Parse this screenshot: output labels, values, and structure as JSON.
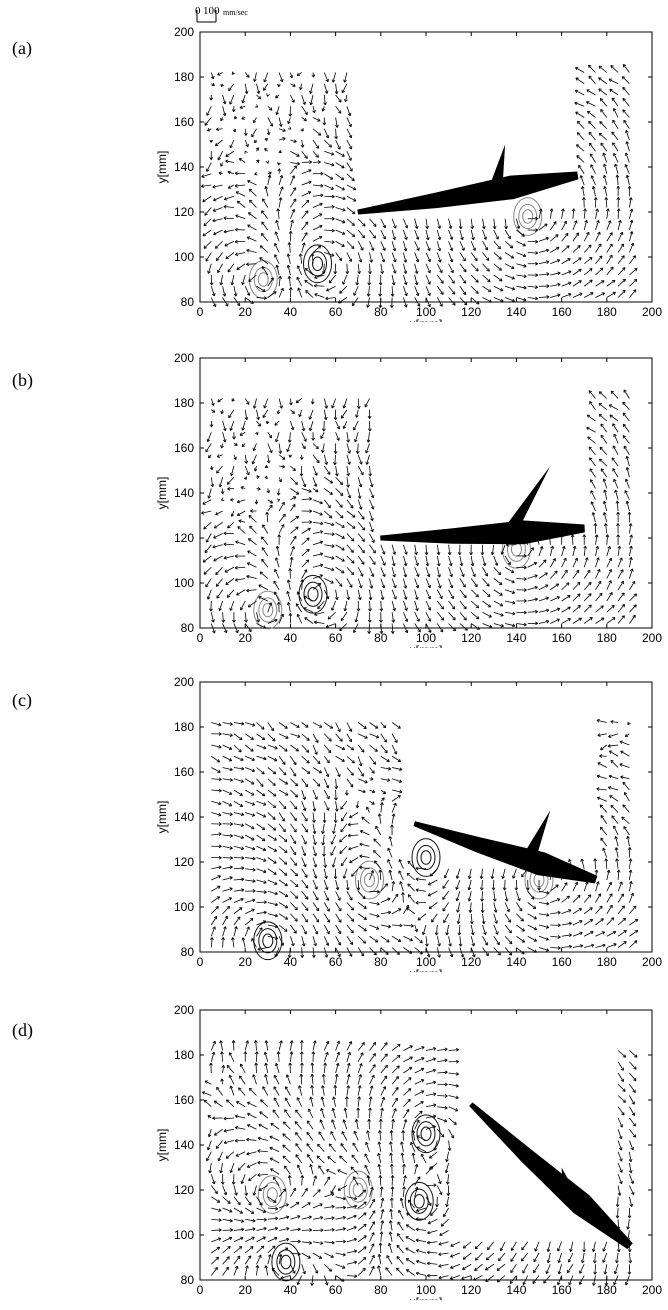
{
  "scale_bar": {
    "zero_label": "0",
    "value_label": "100",
    "unit_label": "mm/sec",
    "value": 100
  },
  "panels": [
    {
      "label": "(a)"
    },
    {
      "label": "(b)"
    },
    {
      "label": "(c)"
    },
    {
      "label": "(d)"
    }
  ],
  "chart_data": [
    {
      "type": "scatter",
      "subtype": "velocity-vector-field",
      "panel": "(a)",
      "xlabel": "x[mm]",
      "ylabel": "y[mm]",
      "xlim": [
        0,
        200
      ],
      "ylim": [
        80,
        200
      ],
      "xticks": [
        0,
        20,
        40,
        60,
        80,
        100,
        120,
        140,
        160,
        180,
        200
      ],
      "yticks": [
        80,
        100,
        120,
        140,
        160,
        180,
        200
      ],
      "grid": false,
      "vector_spacing_mm": 5,
      "measured_region": [
        [
          5,
          80
        ],
        [
          70,
          80
        ],
        [
          70,
          186
        ],
        [
          5,
          186
        ],
        [
          5,
          80
        ]
      ],
      "measured_region_2": [
        [
          5,
          80
        ],
        [
          193,
          80
        ],
        [
          193,
          120
        ],
        [
          5,
          120
        ]
      ],
      "measured_region_3": [
        [
          170,
          80
        ],
        [
          193,
          80
        ],
        [
          193,
          186
        ],
        [
          170,
          186
        ]
      ],
      "fish": {
        "head": [
          167,
          136
        ],
        "tail": [
          70,
          120
        ],
        "dorsal_fin": [
          135,
          150
        ]
      },
      "vortices": [
        {
          "x": 28,
          "y": 90,
          "sense": "ccw"
        },
        {
          "x": 52,
          "y": 97,
          "sense": "cw"
        },
        {
          "x": 145,
          "y": 118,
          "sense": "ccw"
        }
      ]
    },
    {
      "type": "scatter",
      "subtype": "velocity-vector-field",
      "panel": "(b)",
      "xlabel": "x[mm]",
      "ylabel": "y[mm]",
      "xlim": [
        0,
        200
      ],
      "ylim": [
        80,
        200
      ],
      "xticks": [
        0,
        20,
        40,
        60,
        80,
        100,
        120,
        140,
        160,
        180,
        200
      ],
      "yticks": [
        80,
        100,
        120,
        140,
        160,
        180,
        200
      ],
      "grid": false,
      "vector_spacing_mm": 5,
      "measured_region": [
        [
          5,
          80
        ],
        [
          80,
          80
        ],
        [
          80,
          186
        ],
        [
          5,
          186
        ],
        [
          5,
          80
        ]
      ],
      "measured_region_2": [
        [
          5,
          80
        ],
        [
          193,
          80
        ],
        [
          193,
          120
        ],
        [
          5,
          120
        ]
      ],
      "measured_region_3": [
        [
          175,
          80
        ],
        [
          193,
          80
        ],
        [
          193,
          186
        ],
        [
          175,
          186
        ]
      ],
      "fish": {
        "head": [
          170,
          124
        ],
        "tail": [
          80,
          120
        ],
        "dorsal_fin": [
          155,
          152
        ]
      },
      "vortices": [
        {
          "x": 30,
          "y": 88,
          "sense": "ccw"
        },
        {
          "x": 50,
          "y": 95,
          "sense": "cw"
        },
        {
          "x": 140,
          "y": 115,
          "sense": "ccw"
        }
      ]
    },
    {
      "type": "scatter",
      "subtype": "velocity-vector-field",
      "panel": "(c)",
      "xlabel": "x[mm]",
      "ylabel": "y[mm]",
      "xlim": [
        0,
        200
      ],
      "ylim": [
        80,
        200
      ],
      "xticks": [
        0,
        20,
        40,
        60,
        80,
        100,
        120,
        140,
        160,
        180,
        200
      ],
      "yticks": [
        80,
        100,
        120,
        140,
        160,
        180,
        200
      ],
      "grid": false,
      "vector_spacing_mm": 5,
      "measured_region": [
        [
          5,
          80
        ],
        [
          90,
          80
        ],
        [
          90,
          186
        ],
        [
          5,
          186
        ],
        [
          5,
          80
        ]
      ],
      "measured_region_2": [
        [
          5,
          80
        ],
        [
          193,
          80
        ],
        [
          193,
          120
        ],
        [
          5,
          120
        ]
      ],
      "measured_region_3": [
        [
          180,
          80
        ],
        [
          193,
          80
        ],
        [
          193,
          186
        ],
        [
          180,
          186
        ]
      ],
      "fish": {
        "head": [
          175,
          112
        ],
        "tail": [
          95,
          137
        ],
        "dorsal_fin": [
          155,
          143
        ]
      },
      "vortices": [
        {
          "x": 100,
          "y": 122,
          "sense": "cw"
        },
        {
          "x": 75,
          "y": 112,
          "sense": "ccw"
        },
        {
          "x": 30,
          "y": 85,
          "sense": "cw"
        },
        {
          "x": 150,
          "y": 112,
          "sense": "ccw"
        }
      ]
    },
    {
      "type": "scatter",
      "subtype": "velocity-vector-field",
      "panel": "(d)",
      "xlabel": "x[mm]",
      "ylabel": "y[mm]",
      "xlim": [
        0,
        200
      ],
      "ylim": [
        80,
        200
      ],
      "xticks": [
        0,
        20,
        40,
        60,
        80,
        100,
        120,
        140,
        160,
        180,
        200
      ],
      "yticks": [
        80,
        100,
        120,
        140,
        160,
        180,
        200
      ],
      "grid": false,
      "vector_spacing_mm": 5,
      "measured_region": [
        [
          5,
          80
        ],
        [
          115,
          80
        ],
        [
          115,
          186
        ],
        [
          5,
          186
        ],
        [
          5,
          80
        ]
      ],
      "measured_region_2": [
        [
          5,
          80
        ],
        [
          193,
          80
        ],
        [
          193,
          100
        ],
        [
          5,
          100
        ]
      ],
      "measured_region_3": [
        [
          185,
          80
        ],
        [
          193,
          80
        ],
        [
          193,
          186
        ],
        [
          185,
          186
        ]
      ],
      "fish": {
        "head": [
          190,
          95
        ],
        "tail": [
          120,
          158
        ],
        "dorsal_fin": [
          160,
          130
        ]
      },
      "vortices": [
        {
          "x": 100,
          "y": 145,
          "sense": "cw"
        },
        {
          "x": 97,
          "y": 115,
          "sense": "cw"
        },
        {
          "x": 70,
          "y": 120,
          "sense": "ccw"
        },
        {
          "x": 32,
          "y": 118,
          "sense": "ccw"
        },
        {
          "x": 38,
          "y": 88,
          "sense": "cw"
        }
      ]
    }
  ]
}
